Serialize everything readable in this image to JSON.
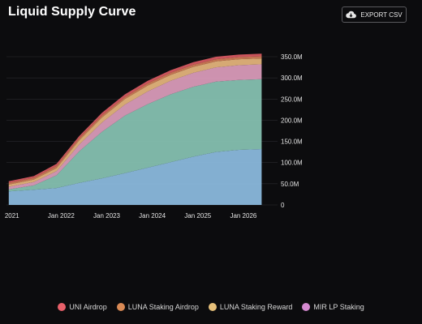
{
  "header": {
    "title": "Liquid Supply Curve",
    "export_label": "EXPORT CSV",
    "export_icon": "cloud-download-icon"
  },
  "colors": {
    "background": "#0c0c0e",
    "grid": "#2a2a2e"
  },
  "chart_data": {
    "type": "area",
    "stacked": true,
    "title": "Liquid Supply Curve",
    "xlabel": "",
    "ylabel": "",
    "x_tick_labels": [
      "2021",
      "Jan 2022",
      "Jan 2023",
      "Jan 2024",
      "Jan 2025",
      "Jan 2026"
    ],
    "y_tick_labels": [
      "0",
      "50.0M",
      "100.0M",
      "150.0M",
      "200.0M",
      "250.0M",
      "300.0M",
      "350.0M"
    ],
    "ylim": [
      0,
      350000000
    ],
    "y_axis_position": "right",
    "legend_position": "bottom",
    "x": [
      2020.85,
      2021.4,
      2021.9,
      2022.4,
      2022.9,
      2023.4,
      2023.9,
      2024.4,
      2024.9,
      2025.4,
      2025.9,
      2026.4
    ],
    "series": [
      {
        "color": "#8ab8dc",
        "values": [
          32000000,
          36000000,
          40000000,
          52000000,
          63000000,
          75000000,
          88000000,
          101000000,
          114000000,
          125000000,
          130000000,
          132000000
        ]
      },
      {
        "color": "#85c0b0",
        "values": [
          5000000,
          10000000,
          30000000,
          75000000,
          110000000,
          136000000,
          150000000,
          160000000,
          165000000,
          166000000,
          165000000,
          165000000
        ]
      },
      {
        "name": "MIR LP Staking",
        "color": "#d89ab8",
        "values": [
          6000000,
          8000000,
          10000000,
          16000000,
          22000000,
          26000000,
          30000000,
          32000000,
          33000000,
          34000000,
          35000000,
          35000000
        ]
      },
      {
        "name": "LUNA Staking Reward",
        "color": "#e2b27a",
        "values": [
          5000000,
          6000000,
          7000000,
          10000000,
          12000000,
          13000000,
          14000000,
          14000000,
          14000000,
          14000000,
          14000000,
          14000000
        ]
      },
      {
        "name": "LUNA Staking Airdrop",
        "color": "#cc7a55",
        "values": [
          4000000,
          4000000,
          5000000,
          5000000,
          5000000,
          5000000,
          5000000,
          5000000,
          5000000,
          5000000,
          5000000,
          5000000
        ]
      },
      {
        "name": "UNI Airdrop",
        "color": "#d45860",
        "values": [
          4000000,
          4000000,
          5000000,
          5000000,
          6000000,
          6000000,
          6000000,
          6000000,
          6000000,
          6000000,
          6000000,
          6000000
        ]
      }
    ]
  },
  "legend": {
    "items": [
      {
        "label": "UNI Airdrop",
        "color": "#e8606a"
      },
      {
        "label": "LUNA Staking Airdrop",
        "color": "#d98a55"
      },
      {
        "label": "LUNA Staking Reward",
        "color": "#e6c07a"
      },
      {
        "label": "MIR LP Staking",
        "color": "#d58ad0"
      }
    ]
  }
}
